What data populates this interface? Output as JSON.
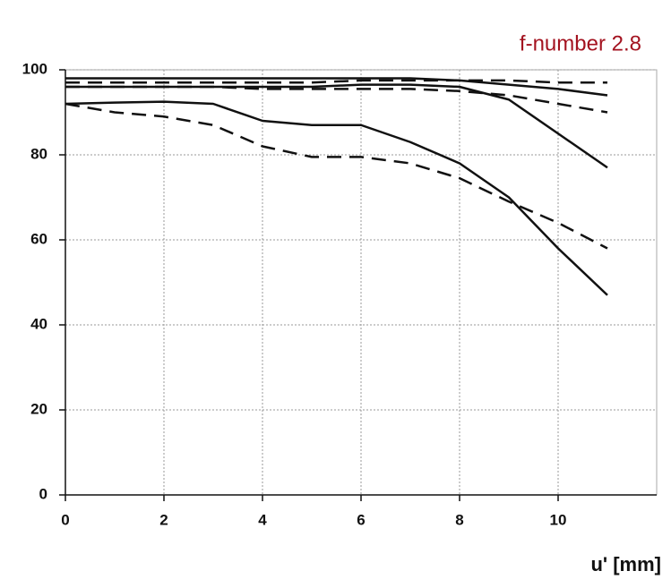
{
  "chart_data": {
    "type": "line",
    "title": "f-number 2.8",
    "x_label": "u' [mm]",
    "x": [
      0,
      1,
      2,
      3,
      4,
      5,
      6,
      7,
      8,
      9,
      10,
      11
    ],
    "series": [
      {
        "color": "#111111",
        "dashed": false,
        "values": [
          98,
          98,
          98,
          98,
          98,
          98,
          98,
          98,
          97.5,
          96.5,
          95.5,
          94
        ]
      },
      {
        "color": "#111111",
        "dashed": false,
        "values": [
          96,
          96,
          96,
          96,
          96,
          96,
          96.5,
          96.5,
          96,
          93,
          85,
          77
        ]
      },
      {
        "color": "#111111",
        "dashed": false,
        "values": [
          92,
          92.3,
          92.5,
          92,
          88,
          87,
          87,
          83,
          78,
          70,
          58,
          47
        ]
      },
      {
        "color": "#111111",
        "dashed": true,
        "values": [
          97,
          97,
          97,
          97,
          97,
          97,
          97.5,
          97.5,
          97.5,
          97.5,
          97,
          97
        ]
      },
      {
        "color": "#111111",
        "dashed": true,
        "values": [
          96,
          96,
          96,
          96,
          95.5,
          95.5,
          95.5,
          95.5,
          95,
          94,
          92,
          90
        ]
      },
      {
        "color": "#111111",
        "dashed": true,
        "values": [
          92,
          90,
          89,
          87,
          82,
          79.5,
          79.5,
          78,
          74.5,
          69,
          64,
          58
        ]
      }
    ],
    "xlim": [
      0,
      12
    ],
    "ylim": [
      0,
      100
    ],
    "xticks": [
      0,
      2,
      4,
      6,
      8,
      10
    ],
    "yticks": [
      0,
      20,
      40,
      60,
      80,
      100
    ],
    "grid": true,
    "title_color": "#a3121f"
  }
}
